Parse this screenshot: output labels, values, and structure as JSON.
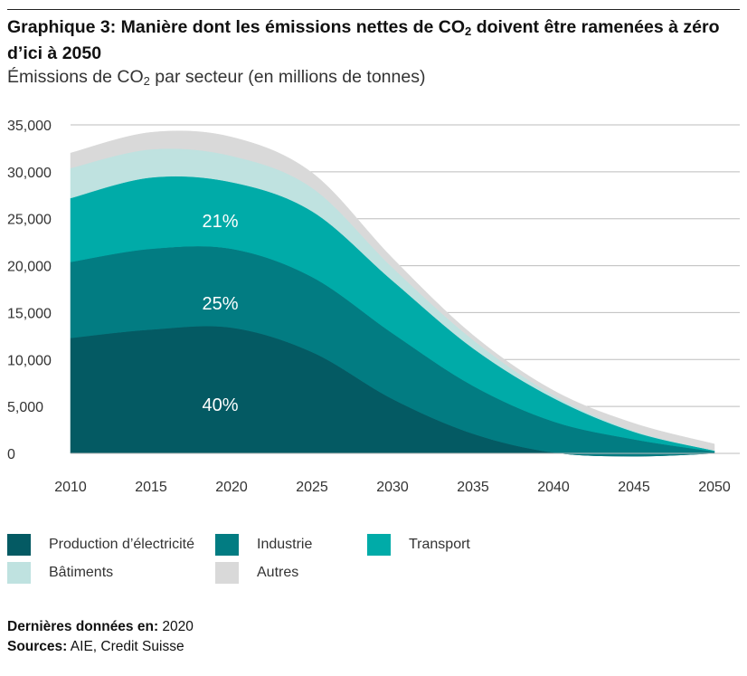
{
  "title": {
    "part1": "Graphique 3: Manière dont les émissions nettes de CO",
    "sub": "2",
    "part2": " doivent être ramenées à zéro d’ici à 2050"
  },
  "subtitle": {
    "part1": "Émissions de CO",
    "sub": "2",
    "part2": " par secteur (en millions de tonnes)"
  },
  "chart_data": {
    "type": "area",
    "stacked": true,
    "x": [
      2010,
      2015,
      2020,
      2025,
      2030,
      2035,
      2040,
      2045,
      2050
    ],
    "ylim": [
      0,
      35000
    ],
    "yticks": [
      0,
      5000,
      10000,
      15000,
      20000,
      25000,
      30000,
      35000
    ],
    "ytick_labels": [
      "0",
      "5,000",
      "10,000",
      "15,000",
      "20,000",
      "25,000",
      "30,000",
      "35,000"
    ],
    "xtick_labels": [
      "2010",
      "2015",
      "2020",
      "2025",
      "2030",
      "2035",
      "2040",
      "2045",
      "2050"
    ],
    "grid": true,
    "legend_position": "bottom",
    "series": [
      {
        "name": "Production d’électricité",
        "color": "#045a63",
        "values": [
          12300,
          13200,
          13400,
          10800,
          5800,
          2100,
          100,
          -300,
          0
        ]
      },
      {
        "name": "Industrie",
        "color": "#027c82",
        "values": [
          8100,
          8600,
          8400,
          8000,
          7000,
          5100,
          3300,
          1800,
          200
        ]
      },
      {
        "name": "Transport",
        "color": "#00aba8",
        "values": [
          6800,
          7600,
          7100,
          7000,
          5600,
          4000,
          2500,
          800,
          100
        ]
      },
      {
        "name": "Bâtiments",
        "color": "#bfe2e0",
        "values": [
          3200,
          3000,
          2800,
          2500,
          1400,
          900,
          300,
          100,
          0
        ]
      },
      {
        "name": "Autres",
        "color": "#d9d9d9",
        "values": [
          1600,
          1800,
          2000,
          1600,
          1000,
          500,
          500,
          800,
          700
        ]
      }
    ],
    "annotations": [
      {
        "text": "40%",
        "x": 2019.3,
        "y": 5200
      },
      {
        "text": "25%",
        "x": 2019.3,
        "y": 16000
      },
      {
        "text": "21%",
        "x": 2019.3,
        "y": 24800
      }
    ]
  },
  "footer": {
    "last_data_label": "Dernières données en:",
    "last_data_value": " 2020",
    "sources_label": "Sources:",
    "sources_value": " AIE, Credit Suisse"
  }
}
